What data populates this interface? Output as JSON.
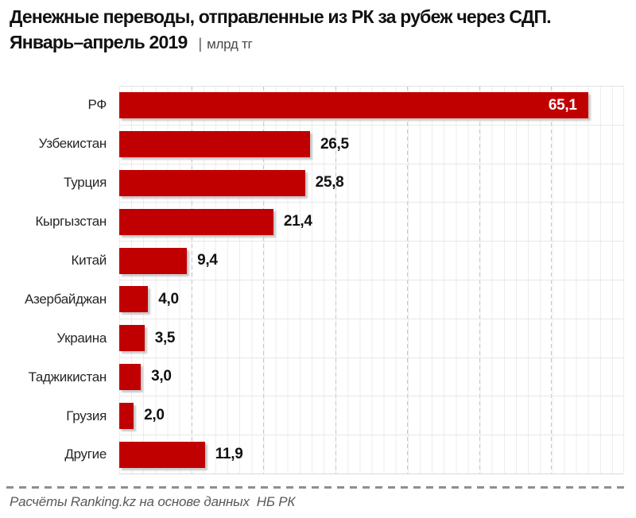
{
  "title": {
    "line1": "Денежные переводы, отправленные из РК за рубеж через СДП.",
    "line2_bold": "Январь–апрель 2019",
    "separator": "|",
    "unit": "млрд тг"
  },
  "chart_data": {
    "type": "bar",
    "orientation": "horizontal",
    "title": "Денежные переводы, отправленные из РК за рубеж через СДП. Январь–апрель 2019",
    "unit": "млрд тг",
    "categories": [
      "РФ",
      "Узбекистан",
      "Турция",
      "Кыргызстан",
      "Китай",
      "Азербайджан",
      "Украина",
      "Таджикистан",
      "Грузия",
      "Другие"
    ],
    "values": [
      65.1,
      26.5,
      25.8,
      21.4,
      9.4,
      4.0,
      3.5,
      3.0,
      2.0,
      11.9
    ],
    "value_labels": [
      "65,1",
      "26,5",
      "25,8",
      "21,4",
      "9,4",
      "4,0",
      "3,5",
      "3,0",
      "2,0",
      "11,9"
    ],
    "inside_label_indices": [
      0
    ],
    "xlim": [
      0,
      70
    ],
    "major_grid_step": 10,
    "grid": true,
    "bar_color": "#c00000",
    "legend": "none"
  },
  "footer": {
    "text": "Расчёты Ranking.kz на основе данных  НБ РК"
  },
  "colors": {
    "bar": "#c00000",
    "bar_value_inside": "#ffffff",
    "value_text": "#111111",
    "category_text": "#262626",
    "footer_text": "#595959",
    "gridline_minor": "#ececec",
    "gridline_major": "#c6c6c6"
  }
}
